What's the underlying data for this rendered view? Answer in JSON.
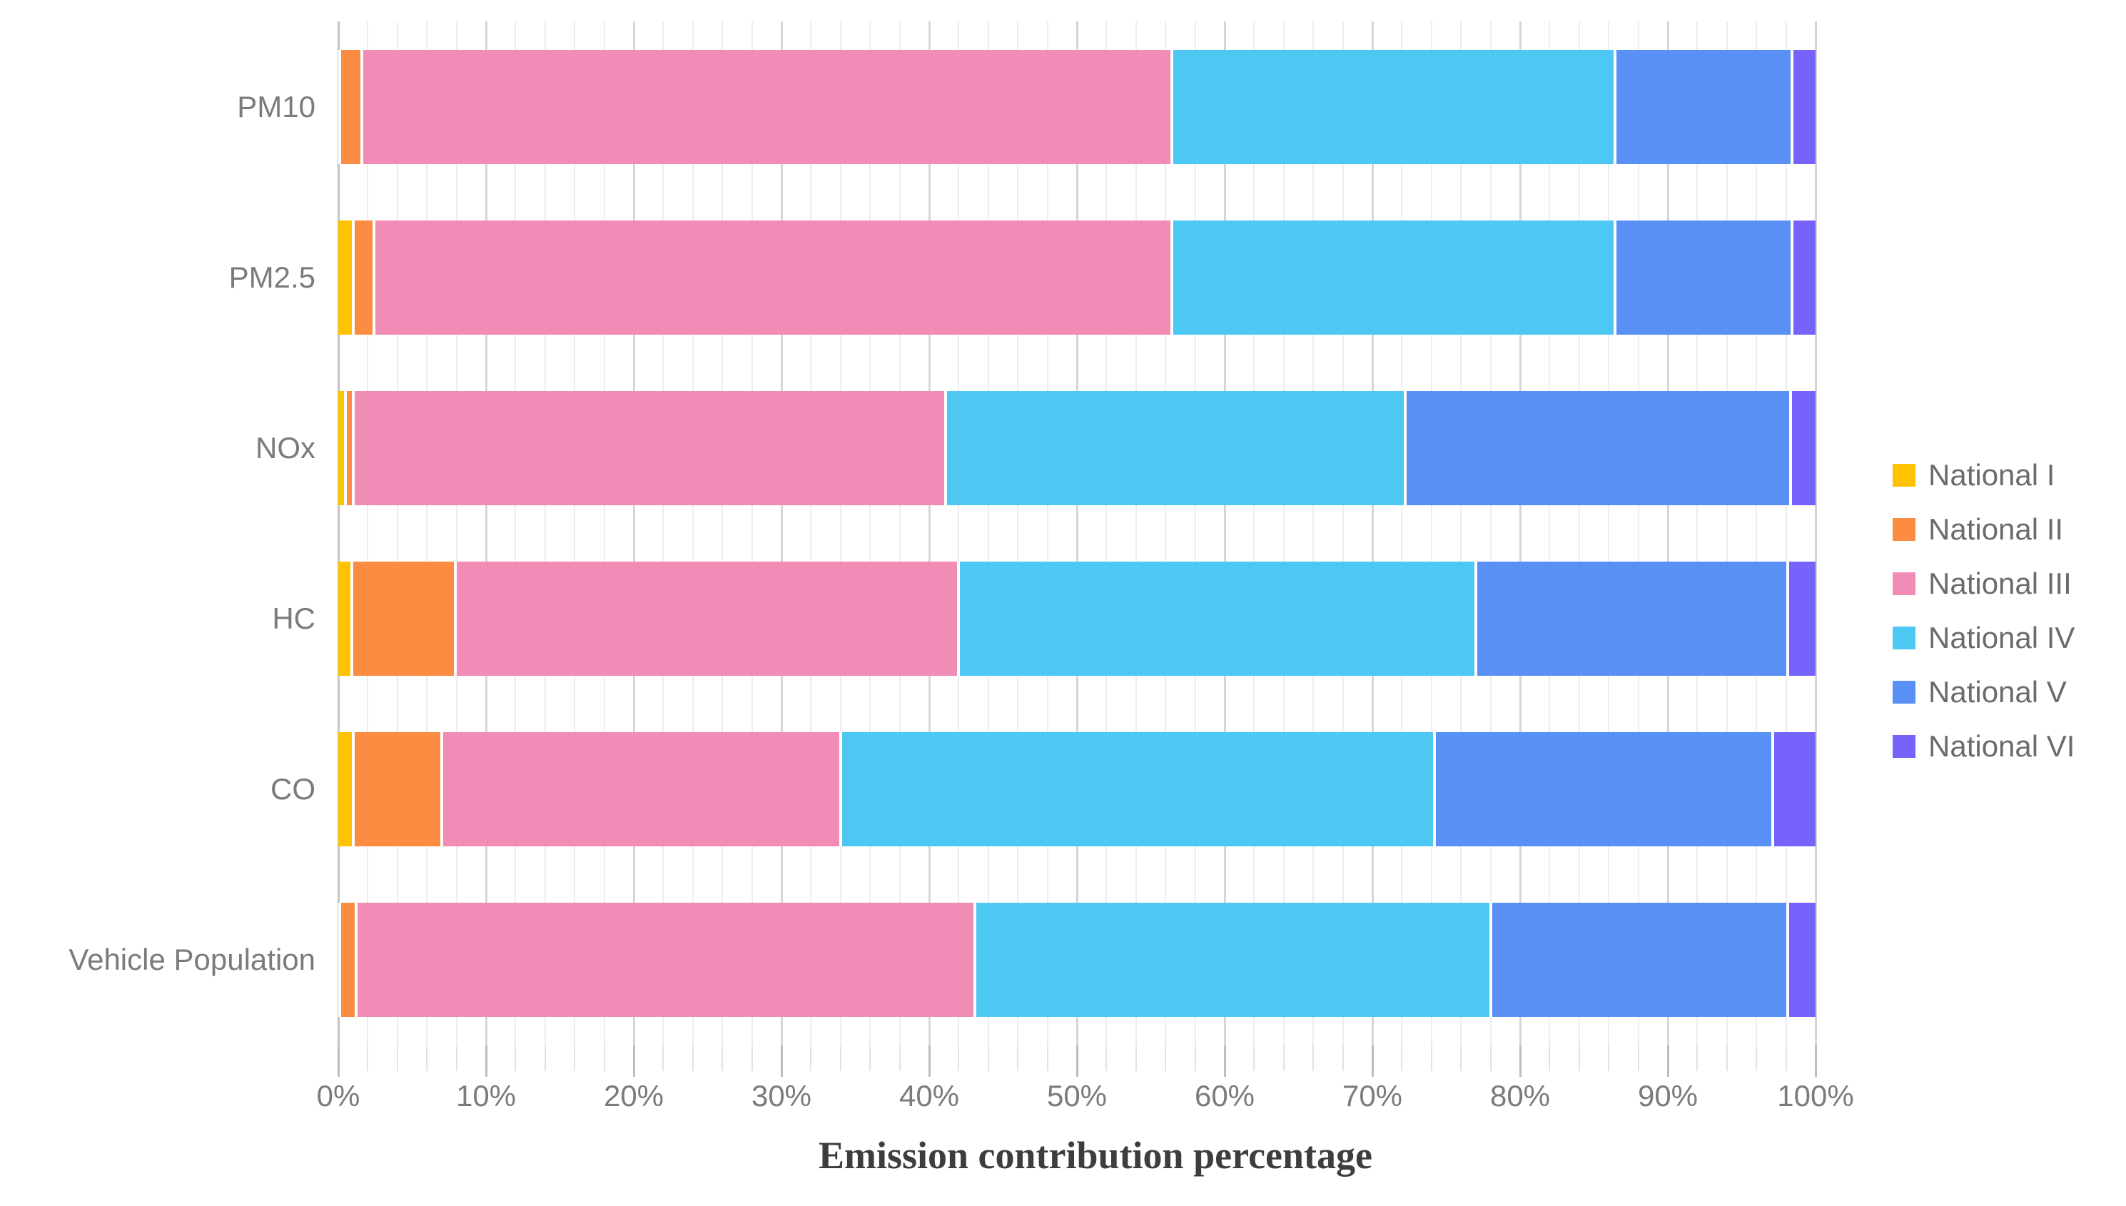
{
  "chart_data": {
    "type": "bar",
    "orientation": "horizontal",
    "stacked": true,
    "title": "",
    "xlabel": "Emission contribution percentage",
    "ylabel": "",
    "categories": [
      "PM10",
      "PM2.5",
      "NOx",
      "HC",
      "CO",
      "Vehicle Population"
    ],
    "series": [
      {
        "name": "National I",
        "color": "#FDC300",
        "values": [
          0.2,
          1.1,
          0.6,
          1.0,
          1.1,
          0.2
        ]
      },
      {
        "name": "National II",
        "color": "#FB8C42",
        "values": [
          1.5,
          1.4,
          0.5,
          7.0,
          6.0,
          1.1
        ]
      },
      {
        "name": "National III",
        "color": "#F08CB5",
        "values": [
          54.8,
          54.0,
          40.1,
          34.1,
          27.0,
          41.9
        ]
      },
      {
        "name": "National IV",
        "color": "#4DC8F2",
        "values": [
          30.0,
          30.0,
          31.1,
          35.0,
          40.2,
          34.9
        ]
      },
      {
        "name": "National V",
        "color": "#5990F6",
        "values": [
          12.0,
          12.0,
          26.1,
          21.1,
          22.9,
          20.1
        ]
      },
      {
        "name": "National VI",
        "color": "#7663FB",
        "values": [
          1.5,
          1.5,
          1.6,
          1.8,
          2.8,
          1.8
        ]
      }
    ],
    "x_ticks": [
      "0%",
      "10%",
      "20%",
      "30%",
      "40%",
      "50%",
      "60%",
      "70%",
      "80%",
      "90%",
      "100%"
    ],
    "xlim": [
      0,
      100
    ],
    "grid": {
      "major_step": 10,
      "minor_step": 2,
      "show": true
    },
    "legend_position": "right"
  }
}
